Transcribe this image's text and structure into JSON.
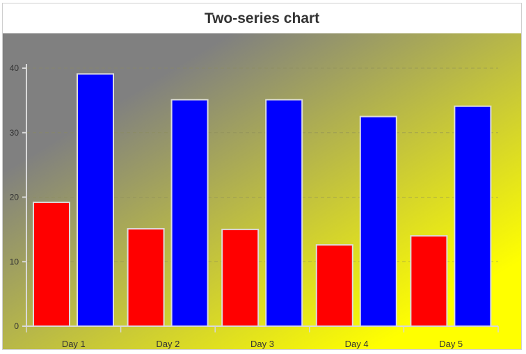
{
  "chart_data": {
    "type": "bar",
    "title": "Two-series chart",
    "categories": [
      "Day 1",
      "Day 2",
      "Day 3",
      "Day 4",
      "Day 5"
    ],
    "series": [
      {
        "values": [
          19.2,
          15.1,
          15.0,
          12.6,
          14.0
        ],
        "color": "#ff0000"
      },
      {
        "values": [
          39.1,
          35.1,
          35.1,
          32.5,
          34.1
        ],
        "color": "#0000ff"
      }
    ],
    "yticks": [
      0,
      10,
      20,
      30,
      40
    ],
    "ylim": [
      0,
      40
    ],
    "grid": "horizontal dashed",
    "background": {
      "from": "#808080",
      "to": "#ffff00"
    },
    "legend": "none"
  }
}
